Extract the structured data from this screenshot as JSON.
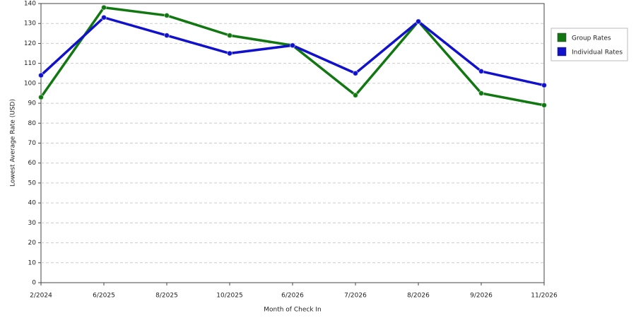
{
  "chart_data": {
    "type": "line",
    "x_label": "Month of Check In",
    "y_label": "Lowest Average Rate (USD)",
    "categories": [
      "2/2024",
      "6/2025",
      "8/2025",
      "10/2025",
      "6/2026",
      "7/2026",
      "8/2026",
      "9/2026",
      "11/2026"
    ],
    "series": [
      {
        "name": "Group Rates",
        "color": "#117711",
        "values": [
          93,
          138,
          134,
          124,
          119,
          94,
          131,
          95,
          89
        ]
      },
      {
        "name": "Individual Rates",
        "color": "#1111cc",
        "values": [
          104,
          133,
          124,
          115,
          119,
          105,
          131,
          106,
          99
        ]
      }
    ],
    "ylim": [
      0,
      140
    ],
    "yticks": [
      0,
      10,
      20,
      30,
      40,
      50,
      60,
      70,
      80,
      90,
      100,
      110,
      120,
      130,
      140
    ],
    "grid": true,
    "legend": "right"
  }
}
